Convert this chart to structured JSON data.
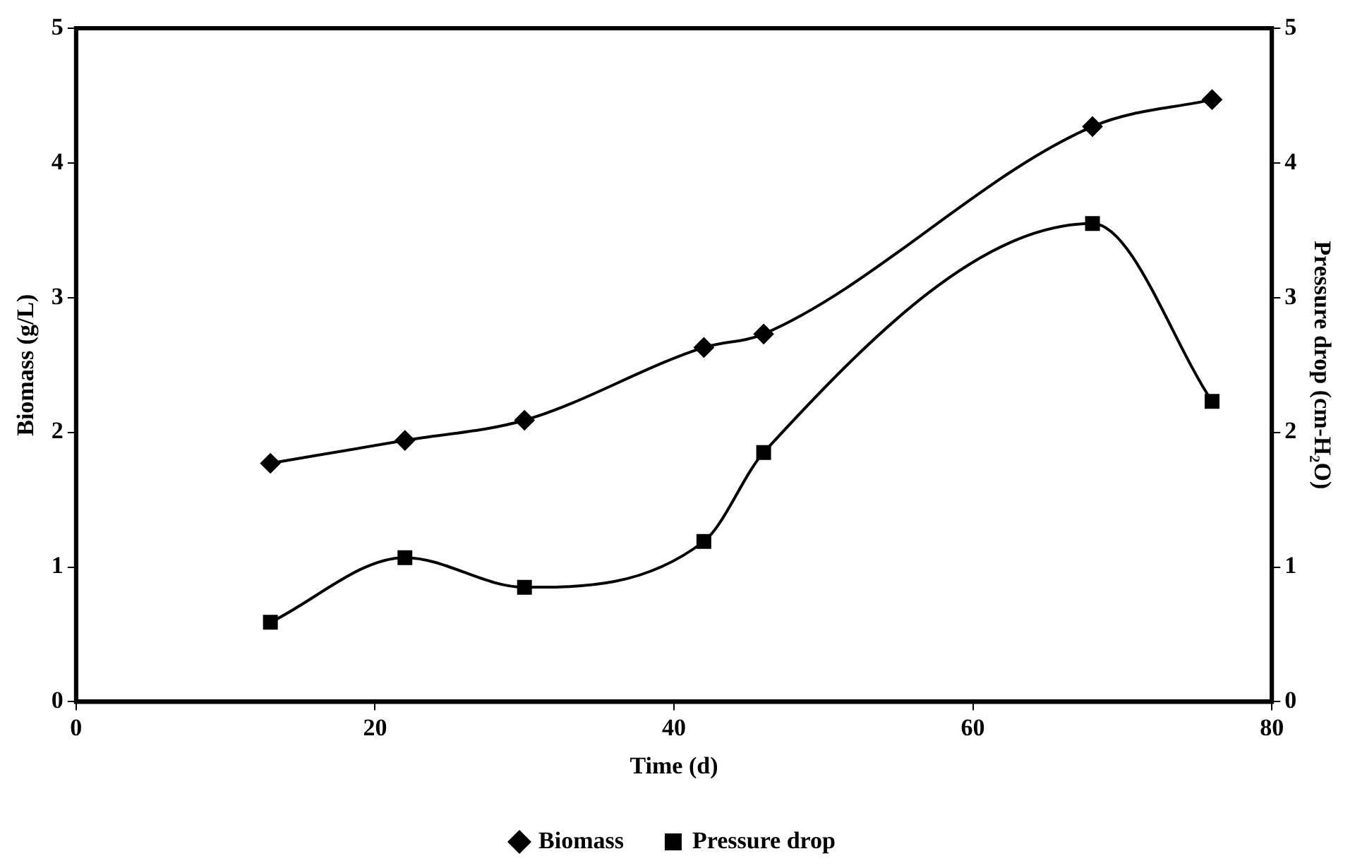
{
  "chart_data": {
    "type": "line",
    "xlabel": "Time (d)",
    "ylabel": "Biomass (g/L)",
    "y2label": "Pressure drop (cm-H₂O)",
    "xlim": [
      0,
      80
    ],
    "xticks": [
      0,
      20,
      40,
      60,
      80
    ],
    "ylim": [
      0,
      5
    ],
    "yticks": [
      0,
      1,
      2,
      3,
      4,
      5
    ],
    "y2lim": [
      0,
      5
    ],
    "y2ticks": [
      0,
      1,
      2,
      3,
      4,
      5
    ],
    "grid": false,
    "legend": "bottom",
    "line_style": "solid",
    "series": [
      {
        "name": "Biomass",
        "color": "#000000",
        "marker": "diamond",
        "x": [
          13,
          22,
          30,
          42,
          46,
          68,
          76
        ],
        "values": [
          1.77,
          1.94,
          2.09,
          2.63,
          2.73,
          4.27,
          4.47
        ]
      },
      {
        "name": "Pressure drop",
        "color": "#000000",
        "marker": "square",
        "axis": "y2",
        "x": [
          13,
          22,
          30,
          42,
          46,
          68,
          76
        ],
        "values": [
          0.59,
          1.07,
          0.85,
          1.19,
          1.85,
          3.55,
          2.23
        ]
      }
    ]
  }
}
